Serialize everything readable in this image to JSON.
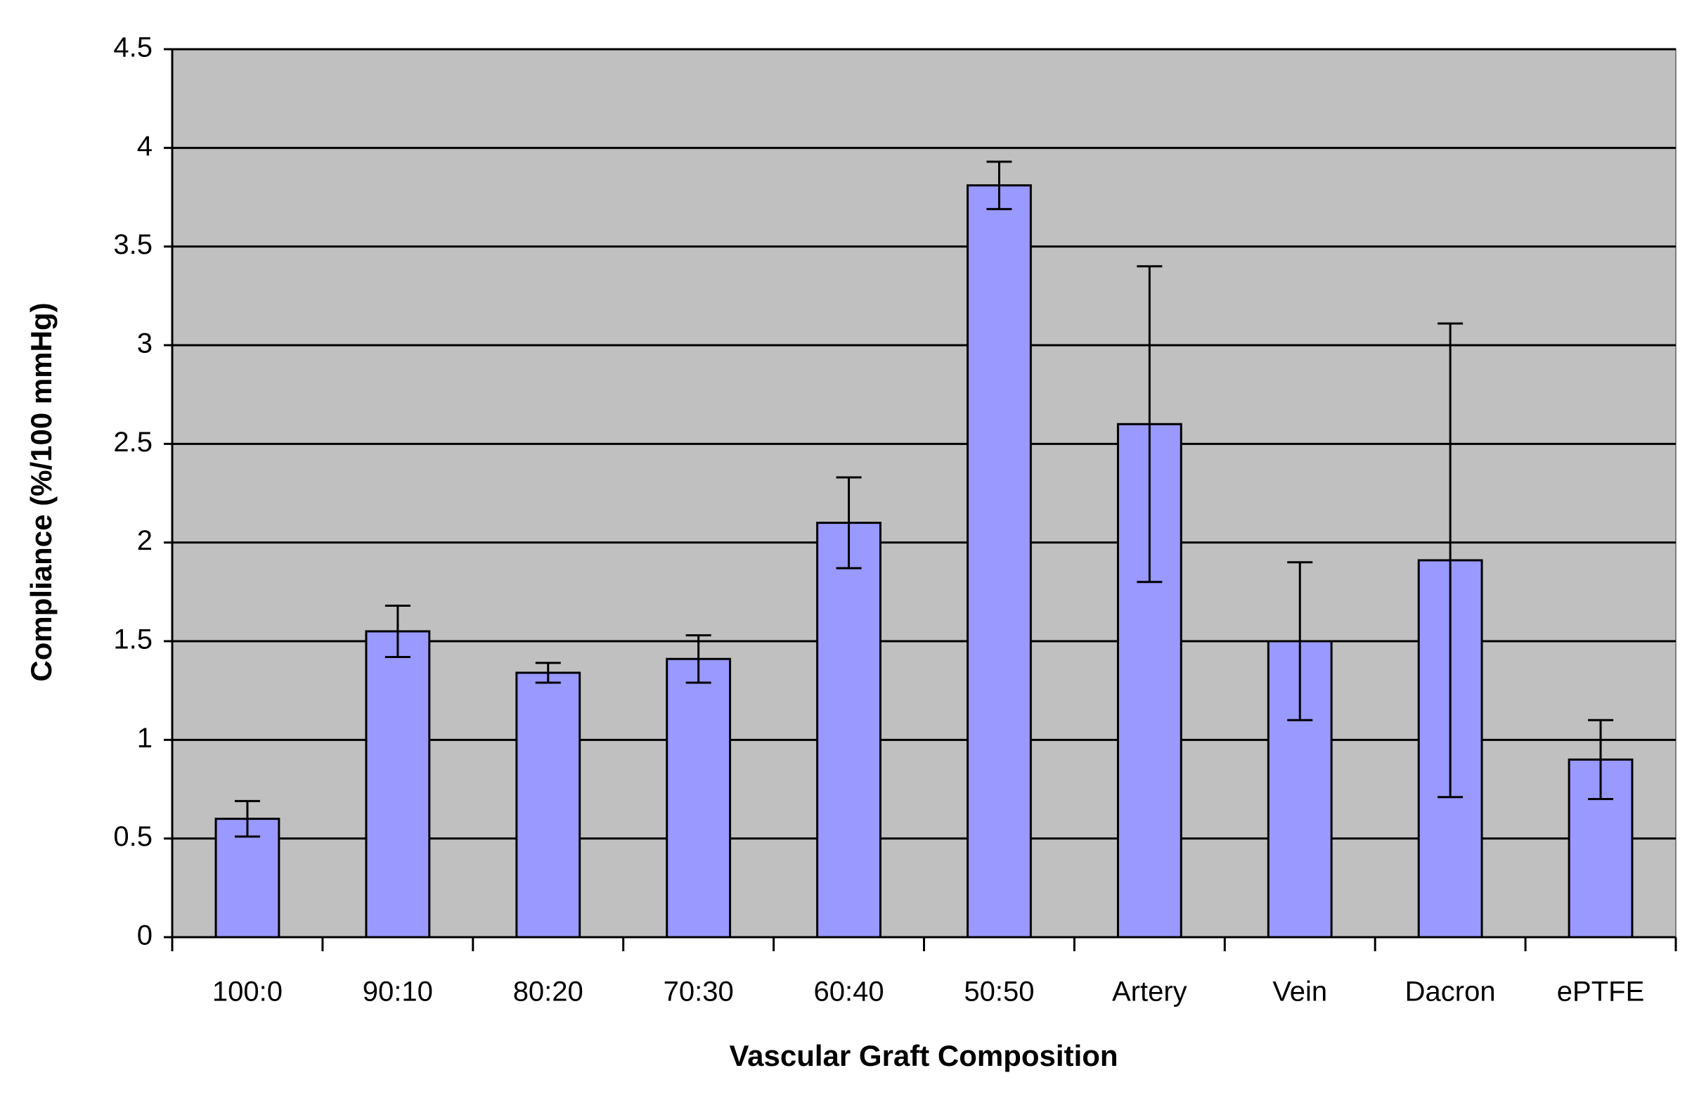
{
  "chart_data": {
    "type": "bar",
    "x_label": "Vascular Graft Composition",
    "y_label": "Compliance (%/100 mmHg)",
    "categories": [
      "100:0",
      "90:10",
      "80:20",
      "70:30",
      "60:40",
      "50:50",
      "Artery",
      "Vein",
      "Dacron",
      "ePTFE"
    ],
    "values": [
      0.6,
      1.55,
      1.34,
      1.41,
      2.1,
      3.81,
      2.6,
      1.5,
      1.91,
      0.9
    ],
    "errors": [
      0.09,
      0.13,
      0.05,
      0.12,
      0.23,
      0.12,
      0.8,
      0.4,
      1.2,
      0.2
    ],
    "color": "#9999ff",
    "background": "#c0c0c0",
    "ylim": [
      0,
      4.5
    ],
    "yticks": [
      0,
      0.5,
      1,
      1.5,
      2,
      2.5,
      3,
      3.5,
      4,
      4.5
    ],
    "grid": true
  }
}
